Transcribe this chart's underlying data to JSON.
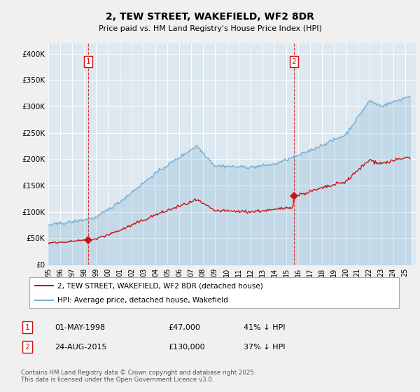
{
  "title_line1": "2, TEW STREET, WAKEFIELD, WF2 8DR",
  "title_line2": "Price paid vs. HM Land Registry's House Price Index (HPI)",
  "ylim": [
    0,
    420000
  ],
  "yticks": [
    0,
    50000,
    100000,
    150000,
    200000,
    250000,
    300000,
    350000,
    400000
  ],
  "ytick_labels": [
    "£0",
    "£50K",
    "£100K",
    "£150K",
    "£200K",
    "£250K",
    "£300K",
    "£350K",
    "£400K"
  ],
  "hpi_color": "#7bafd4",
  "price_color": "#cc1111",
  "sale1_date": 1998.35,
  "sale1_price": 47000,
  "sale2_date": 2015.65,
  "sale2_price": 130000,
  "legend_line1": "2, TEW STREET, WAKEFIELD, WF2 8DR (detached house)",
  "legend_line2": "HPI: Average price, detached house, Wakefield",
  "table_row1": [
    "1",
    "01-MAY-1998",
    "£47,000",
    "41% ↓ HPI"
  ],
  "table_row2": [
    "2",
    "24-AUG-2015",
    "£130,000",
    "37% ↓ HPI"
  ],
  "footnote": "Contains HM Land Registry data © Crown copyright and database right 2025.\nThis data is licensed under the Open Government Licence v3.0.",
  "background_color": "#f0f0f0",
  "plot_bg_color": "#dde8f0",
  "grid_color": "#ffffff"
}
